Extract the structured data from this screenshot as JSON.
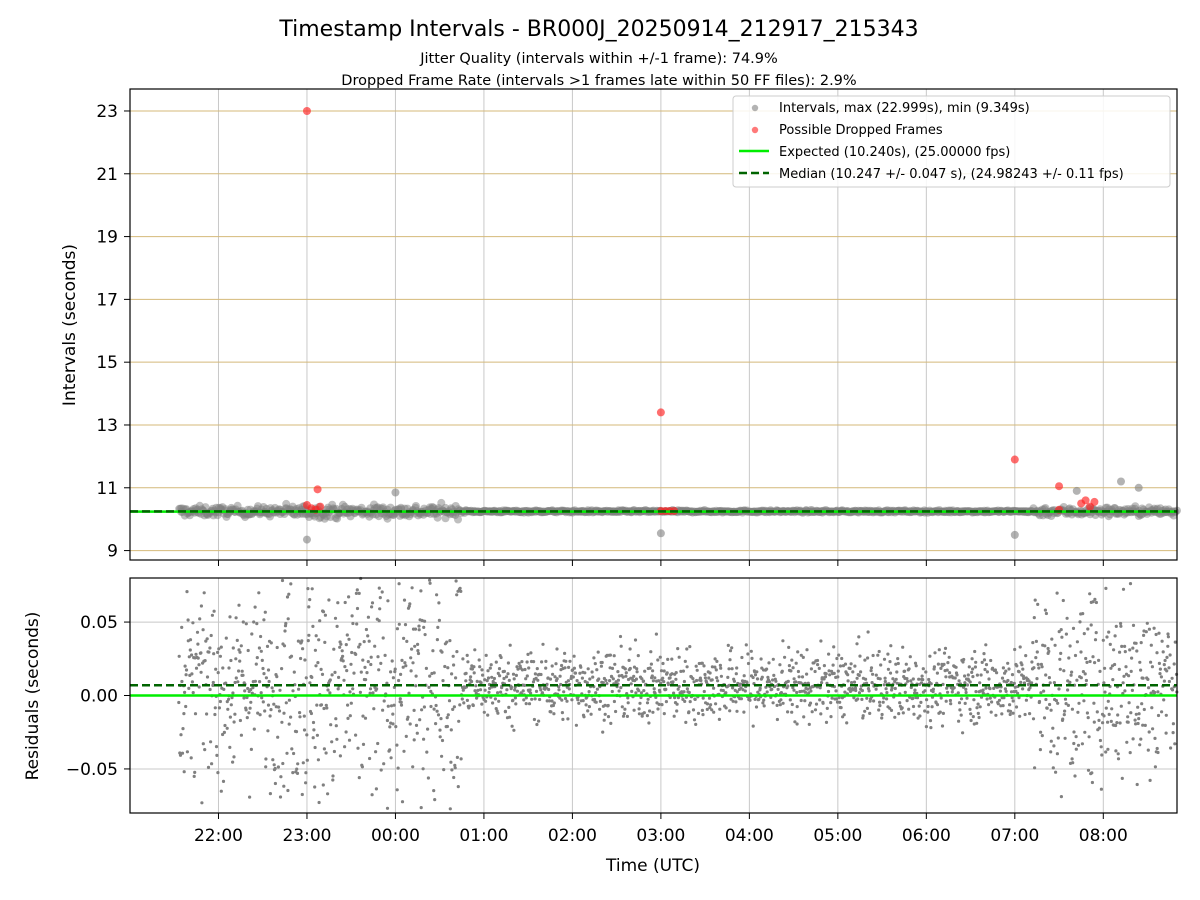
{
  "chart_data": {
    "type": "scatter",
    "title": "Timestamp Intervals - BR000J_20250914_212917_215343",
    "subtitle_lines": [
      "Jitter Quality (intervals within +/-1 frame): 74.9%",
      "Dropped Frame Rate (intervals >1 frames late within 50 FF files): 2.9%"
    ],
    "xlabel": "Time (UTC)",
    "x_ticks": [
      "22:00",
      "23:00",
      "00:00",
      "01:00",
      "02:00",
      "03:00",
      "04:00",
      "05:00",
      "06:00",
      "07:00",
      "08:00"
    ],
    "x_tick_hours": [
      22,
      23,
      24,
      25,
      26,
      27,
      28,
      29,
      30,
      31,
      32
    ],
    "x_range_hours": [
      21.0,
      32.833
    ],
    "data_x_range_hours": [
      21.55,
      32.833
    ],
    "top_panel": {
      "ylabel": "Intervals (seconds)",
      "ylim": [
        8.7,
        23.7
      ],
      "y_ticks": [
        "9",
        "11",
        "13",
        "15",
        "17",
        "19",
        "21",
        "23"
      ],
      "y_tick_values": [
        9,
        11,
        13,
        15,
        17,
        19,
        21,
        23
      ],
      "grid": "on",
      "legend_position": "top-right",
      "legend": [
        "Intervals, max (22.999s), min (9.349s)",
        "Possible Dropped Frames",
        "Expected (10.240s), (25.00000 fps)",
        "Median (10.247 +/- 0.047 s), (24.98243 +/- 0.11 fps)"
      ],
      "expected_value": 10.24,
      "median_value": 10.247,
      "interval_max": 22.999,
      "interval_min": 9.349,
      "noise_segments": [
        {
          "from": 21.55,
          "to": 22.7,
          "spread": 0.13
        },
        {
          "from": 22.7,
          "to": 24.75,
          "spread": 0.17
        },
        {
          "from": 24.75,
          "to": 31.2,
          "spread": 0.03
        },
        {
          "from": 31.2,
          "to": 32.833,
          "spread": 0.12
        }
      ],
      "outliers": [
        {
          "x": 23.0,
          "y": 9.35
        },
        {
          "x": 24.0,
          "y": 10.85
        },
        {
          "x": 27.0,
          "y": 9.55
        },
        {
          "x": 31.0,
          "y": 9.5
        },
        {
          "x": 32.2,
          "y": 11.2
        },
        {
          "x": 32.4,
          "y": 11.0
        },
        {
          "x": 31.7,
          "y": 10.9
        }
      ],
      "dropped_frames": [
        {
          "x": 23.0,
          "y": 22.999
        },
        {
          "x": 23.0,
          "y": 10.45
        },
        {
          "x": 23.05,
          "y": 10.35
        },
        {
          "x": 23.1,
          "y": 10.3
        },
        {
          "x": 23.12,
          "y": 10.95
        },
        {
          "x": 23.15,
          "y": 10.4
        },
        {
          "x": 27.0,
          "y": 13.4
        },
        {
          "x": 27.0,
          "y": 10.26
        },
        {
          "x": 27.05,
          "y": 10.26
        },
        {
          "x": 27.1,
          "y": 10.26
        },
        {
          "x": 27.15,
          "y": 10.26
        },
        {
          "x": 31.0,
          "y": 11.9
        },
        {
          "x": 31.5,
          "y": 11.05
        },
        {
          "x": 31.5,
          "y": 10.3
        },
        {
          "x": 31.75,
          "y": 10.5
        },
        {
          "x": 31.8,
          "y": 10.6
        },
        {
          "x": 31.85,
          "y": 10.4
        },
        {
          "x": 31.9,
          "y": 10.55
        }
      ]
    },
    "bottom_panel": {
      "ylabel": "Residuals (seconds)",
      "ylim": [
        -0.08,
        0.08
      ],
      "y_ticks": [
        "0.05",
        "0.00",
        "−0.05"
      ],
      "y_tick_values": [
        0.05,
        0.0,
        -0.05
      ],
      "grid": "on",
      "expected_residual": 0.0,
      "median_residual": 0.007,
      "noise_segments": [
        {
          "from": 21.55,
          "to": 22.7,
          "spread": 0.055
        },
        {
          "from": 22.7,
          "to": 24.75,
          "spread": 0.075
        },
        {
          "from": 24.75,
          "to": 31.2,
          "spread": 0.022
        },
        {
          "from": 31.2,
          "to": 32.833,
          "spread": 0.06
        }
      ]
    },
    "colors": {
      "intervals": "#808080",
      "dropped": "#ff2020",
      "expected": "#00ee00",
      "median": "#006400",
      "grid_x": "#c8c8c8",
      "grid_y_top": "#d4b97a",
      "grid_y_bottom": "#c8c8c8"
    }
  }
}
